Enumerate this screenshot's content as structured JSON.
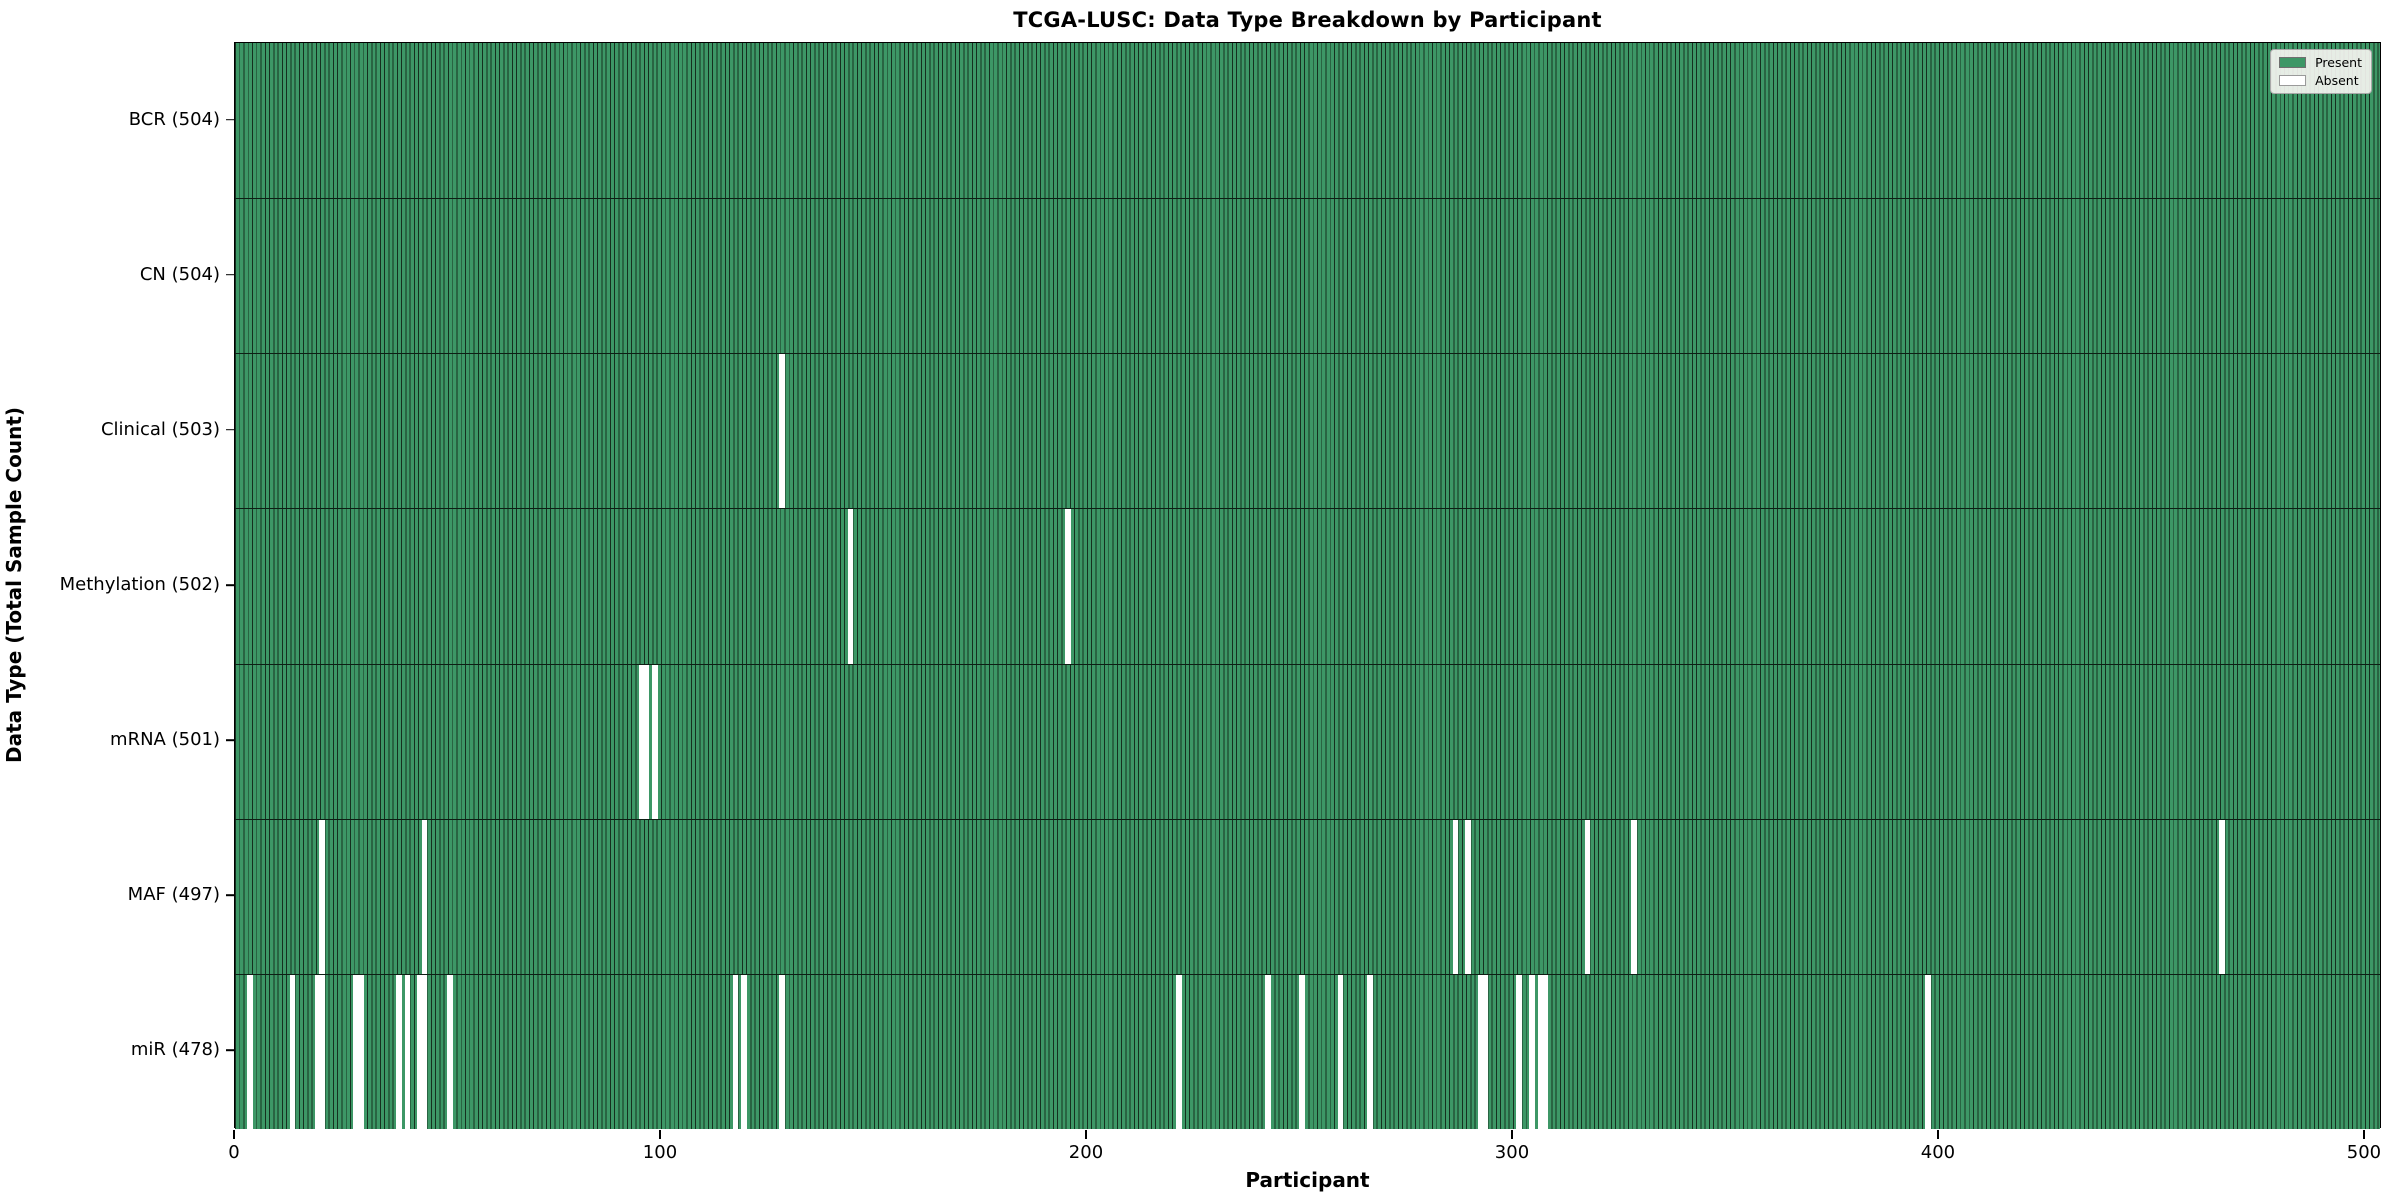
{
  "title": "TCGA-LUSC: Data Type Breakdown by Participant",
  "legend": {
    "present_label": "Present",
    "absent_label": "Absent"
  },
  "colors": {
    "present_fill": "#3d9766",
    "bar_edge": "#15301f",
    "absent_fill": "#ffffff",
    "axis": "#000000"
  },
  "chart_data": {
    "type": "heatmap",
    "title": "TCGA-LUSC: Data Type Breakdown by Participant",
    "xlabel": "Participant",
    "ylabel": "Data Type (Total Sample Count)",
    "legend_entries": [
      "Present",
      "Absent"
    ],
    "legend_position": "upper right",
    "total_participants": 504,
    "x_ticks": [
      0,
      100,
      200,
      300,
      400,
      500
    ],
    "xlim": [
      0,
      504
    ],
    "grid": false,
    "rows": [
      {
        "label": "BCR (504)",
        "data_type": "BCR",
        "present_count": 504,
        "absent_participants": []
      },
      {
        "label": "CN (504)",
        "data_type": "CN",
        "present_count": 504,
        "absent_participants": []
      },
      {
        "label": "Clinical (503)",
        "data_type": "Clinical",
        "present_count": 503,
        "absent_participants": [
          128
        ]
      },
      {
        "label": "Methylation (502)",
        "data_type": "Methylation",
        "present_count": 502,
        "absent_participants": [
          144,
          195
        ]
      },
      {
        "label": "mRNA (501)",
        "data_type": "mRNA",
        "present_count": 501,
        "absent_participants": [
          95,
          96,
          98
        ]
      },
      {
        "label": "MAF (497)",
        "data_type": "MAF",
        "present_count": 497,
        "absent_participants": [
          20,
          44,
          286,
          289,
          317,
          328,
          466
        ]
      },
      {
        "label": "miR (478)",
        "data_type": "miR",
        "present_count": 478,
        "absent_participants": [
          3,
          13,
          19,
          20,
          28,
          29,
          38,
          40,
          43,
          44,
          50,
          117,
          119,
          128,
          221,
          242,
          250,
          259,
          266,
          292,
          293,
          301,
          304,
          306,
          307,
          397
        ]
      }
    ]
  }
}
